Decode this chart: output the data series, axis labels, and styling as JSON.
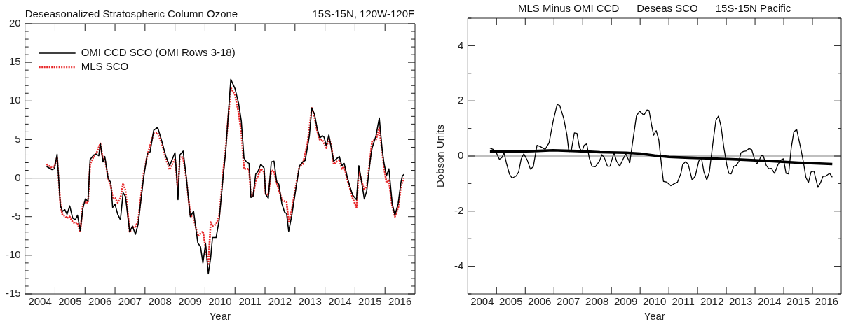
{
  "chart_data": [
    {
      "type": "line",
      "title": "Deseasonalized Stratospheric Column Ozone",
      "subtitle": "15S-15N, 120W-120E",
      "xlabel": "Year",
      "xlim": [
        2004,
        2017
      ],
      "xticks": [
        {
          "value": 2004.5,
          "label": "2004"
        },
        {
          "value": 2005,
          "label": null
        },
        {
          "value": 2005.5,
          "label": "2005"
        },
        {
          "value": 2006,
          "label": null
        },
        {
          "value": 2006.5,
          "label": "2006"
        },
        {
          "value": 2007,
          "label": null
        },
        {
          "value": 2007.5,
          "label": "2007"
        },
        {
          "value": 2008,
          "label": null
        },
        {
          "value": 2008.5,
          "label": "2008"
        },
        {
          "value": 2009,
          "label": null
        },
        {
          "value": 2009.5,
          "label": "2009"
        },
        {
          "value": 2010,
          "label": null
        },
        {
          "value": 2010.5,
          "label": "2010"
        },
        {
          "value": 2011,
          "label": null
        },
        {
          "value": 2011.5,
          "label": "2011"
        },
        {
          "value": 2012,
          "label": null
        },
        {
          "value": 2012.5,
          "label": "2012"
        },
        {
          "value": 2013,
          "label": null
        },
        {
          "value": 2013.5,
          "label": "2013"
        },
        {
          "value": 2014,
          "label": null
        },
        {
          "value": 2014.5,
          "label": "2014"
        },
        {
          "value": 2015,
          "label": null
        },
        {
          "value": 2015.5,
          "label": "2015"
        },
        {
          "value": 2016,
          "label": null
        },
        {
          "value": 2016.5,
          "label": "2016"
        }
      ],
      "ylim": [
        -15,
        20
      ],
      "yticks": [
        -15,
        {
          "value": -14,
          "label": null
        },
        {
          "value": -13,
          "label": null
        },
        {
          "value": -12,
          "label": null
        },
        {
          "value": -11,
          "label": null
        },
        -10,
        {
          "value": -9,
          "label": null
        },
        {
          "value": -8,
          "label": null
        },
        {
          "value": -7,
          "label": null
        },
        {
          "value": -6,
          "label": null
        },
        -5,
        {
          "value": -4,
          "label": null
        },
        {
          "value": -3,
          "label": null
        },
        {
          "value": -2,
          "label": null
        },
        {
          "value": -1,
          "label": null
        },
        0,
        {
          "value": 1,
          "label": null
        },
        {
          "value": 2,
          "label": null
        },
        {
          "value": 3,
          "label": null
        },
        {
          "value": 4,
          "label": null
        },
        5,
        {
          "value": 6,
          "label": null
        },
        {
          "value": 7,
          "label": null
        },
        {
          "value": 8,
          "label": null
        },
        {
          "value": 9,
          "label": null
        },
        10,
        {
          "value": 11,
          "label": null
        },
        {
          "value": 12,
          "label": null
        },
        {
          "value": 13,
          "label": null
        },
        {
          "value": 14,
          "label": null
        },
        15,
        {
          "value": 16,
          "label": null
        },
        {
          "value": 17,
          "label": null
        },
        {
          "value": 18,
          "label": null
        },
        {
          "value": 19,
          "label": null
        },
        20
      ],
      "grid": false,
      "legend": "top left",
      "marker": "none",
      "ref_lines": [
        {
          "axis": "y",
          "value": 0,
          "color": "#808080"
        }
      ],
      "series": [
        {
          "name": "OMI CCD SCO (OMI Rows 3-18)",
          "color": "#000000",
          "line_style": "solid",
          "x": [
            2004.72,
            2004.9,
            2004.98,
            2005.07,
            2005.18,
            2005.25,
            2005.33,
            2005.4,
            2005.49,
            2005.59,
            2005.68,
            2005.75,
            2005.84,
            2005.93,
            2006.01,
            2006.1,
            2006.17,
            2006.29,
            2006.38,
            2006.46,
            2006.51,
            2006.6,
            2006.66,
            2006.77,
            2006.86,
            2006.92,
            2007.0,
            2007.09,
            2007.18,
            2007.27,
            2007.35,
            2007.49,
            2007.58,
            2007.68,
            2007.77,
            2007.95,
            2008.08,
            2008.17,
            2008.29,
            2008.42,
            2008.56,
            2008.69,
            2008.82,
            2009.0,
            2009.05,
            2009.1,
            2009.16,
            2009.27,
            2009.38,
            2009.51,
            2009.62,
            2009.76,
            2009.85,
            2009.93,
            2010.02,
            2010.11,
            2010.19,
            2010.25,
            2010.37,
            2010.47,
            2010.6,
            2010.69,
            2010.86,
            2011.0,
            2011.12,
            2011.21,
            2011.3,
            2011.38,
            2011.47,
            2011.53,
            2011.6,
            2011.69,
            2011.77,
            2011.86,
            2011.97,
            2012.02,
            2012.11,
            2012.21,
            2012.3,
            2012.39,
            2012.46,
            2012.56,
            2012.65,
            2012.72,
            2012.79,
            2012.89,
            2013.04,
            2013.15,
            2013.26,
            2013.34,
            2013.42,
            2013.48,
            2013.56,
            2013.65,
            2013.74,
            2013.83,
            2013.91,
            2013.97,
            2014.04,
            2014.13,
            2014.21,
            2014.29,
            2014.38,
            2014.48,
            2014.56,
            2014.64,
            2014.75,
            2014.83,
            2014.92,
            2015.05,
            2015.13,
            2015.22,
            2015.31,
            2015.39,
            2015.52,
            2015.57,
            2015.7,
            2015.81,
            2015.9,
            2015.96,
            2016.05,
            2016.13,
            2016.24,
            2016.33,
            2016.44,
            2016.53,
            2016.58,
            2016.64
          ],
          "values": [
            1.5,
            1.1,
            1.2,
            3.1,
            -3.6,
            -4.3,
            -4.1,
            -4.7,
            -3.6,
            -5.2,
            -5.4,
            -4.8,
            -6.8,
            -3.9,
            -2.7,
            -3.0,
            2.4,
            3.0,
            3.1,
            2.9,
            4.5,
            2.1,
            2.8,
            0,
            -0.6,
            -3.8,
            -3.4,
            -4.7,
            -5.4,
            -1.9,
            -2.4,
            -7.0,
            -6.2,
            -7.3,
            -6.0,
            0,
            3.2,
            3.4,
            6.2,
            6.6,
            4.8,
            2.9,
            1.6,
            3.3,
            0.5,
            -2.8,
            3.0,
            3.5,
            0,
            -5.0,
            -4.3,
            -8.4,
            -8.9,
            -11.0,
            -8.5,
            -12.4,
            -10.3,
            -7.7,
            -7.7,
            -5.5,
            0,
            3.5,
            12.8,
            11.6,
            9.7,
            7.4,
            2.6,
            2.1,
            1.9,
            -2.5,
            -2.4,
            0.5,
            0.9,
            1.8,
            1.3,
            -2.1,
            -2.6,
            2.1,
            2.2,
            -0.5,
            -0.8,
            -3.3,
            -4.4,
            -4.6,
            -6.9,
            -4.9,
            -1.1,
            1.6,
            2.1,
            2.3,
            4.1,
            5.5,
            9.1,
            8.3,
            6.4,
            5.2,
            5.5,
            5.3,
            4.2,
            5.6,
            3.9,
            2.2,
            2.5,
            2.8,
            1.6,
            1.9,
            0,
            -1.1,
            -2.2,
            -2.8,
            1.6,
            -0.5,
            -2.7,
            -1.7,
            2.7,
            3.9,
            5.5,
            7.8,
            3.9,
            2.1,
            0.3,
            1.2,
            -3.3,
            -4.8,
            -3.3,
            -0.6,
            0.3,
            0.5
          ]
        },
        {
          "name": "MLS SCO",
          "color": "#e8282a",
          "line_style": "dotted",
          "x": [
            2004.72,
            2004.9,
            2004.98,
            2005.07,
            2005.18,
            2005.25,
            2005.33,
            2005.4,
            2005.49,
            2005.59,
            2005.68,
            2005.75,
            2005.84,
            2005.93,
            2006.01,
            2006.1,
            2006.17,
            2006.29,
            2006.38,
            2006.51,
            2006.6,
            2006.66,
            2006.77,
            2006.86,
            2006.92,
            2007.0,
            2007.09,
            2007.18,
            2007.27,
            2007.35,
            2007.49,
            2007.58,
            2007.68,
            2007.77,
            2007.95,
            2008.08,
            2008.29,
            2008.42,
            2008.56,
            2008.69,
            2008.82,
            2009.0,
            2009.05,
            2009.1,
            2009.16,
            2009.27,
            2009.38,
            2009.51,
            2009.62,
            2009.76,
            2009.85,
            2009.93,
            2010.02,
            2010.11,
            2010.19,
            2010.25,
            2010.37,
            2010.47,
            2010.6,
            2010.69,
            2010.86,
            2011.0,
            2011.12,
            2011.21,
            2011.3,
            2011.47,
            2011.53,
            2011.6,
            2011.69,
            2011.77,
            2011.86,
            2011.97,
            2012.02,
            2012.11,
            2012.21,
            2012.3,
            2012.39,
            2012.56,
            2012.65,
            2012.72,
            2012.79,
            2012.89,
            2013.04,
            2013.15,
            2013.26,
            2013.42,
            2013.56,
            2013.65,
            2013.74,
            2013.83,
            2013.91,
            2014.04,
            2014.13,
            2014.21,
            2014.29,
            2014.38,
            2014.48,
            2014.56,
            2014.64,
            2014.75,
            2014.83,
            2014.92,
            2015.05,
            2015.13,
            2015.22,
            2015.31,
            2015.39,
            2015.52,
            2015.57,
            2015.7,
            2015.81,
            2015.9,
            2015.96,
            2016.05,
            2016.13,
            2016.24,
            2016.33,
            2016.44,
            2016.53,
            2016.62
          ],
          "values": [
            1.8,
            1.3,
            1.5,
            2.7,
            -3.4,
            -4.8,
            -4.9,
            -5.2,
            -5.0,
            -5.7,
            -5.9,
            -5.8,
            -7.0,
            -3.4,
            -3.1,
            -3.2,
            1.8,
            2.8,
            3.2,
            4.5,
            2.4,
            2.6,
            0,
            -1.0,
            -2.5,
            -2.6,
            -3.2,
            -2.6,
            -0.7,
            -1.6,
            -7.0,
            -6.4,
            -6.3,
            -5.6,
            0.5,
            3.0,
            5.8,
            5.9,
            4.5,
            2.5,
            1.1,
            2.5,
            0.6,
            -1.9,
            2.8,
            2.7,
            -0.2,
            -4.8,
            -5.2,
            -7.5,
            -7.2,
            -6.9,
            -9.0,
            -11.3,
            -5.7,
            -6.2,
            -6.0,
            -5.0,
            0.5,
            4.0,
            11.7,
            10.8,
            8.5,
            6.0,
            1.2,
            1.2,
            -2.3,
            -2.4,
            -0.3,
            0.3,
            1.2,
            0.8,
            -2.0,
            -2.2,
            1.0,
            0.9,
            -0.6,
            -2.8,
            -3.0,
            -3.1,
            -5.8,
            -4.2,
            -0.8,
            1.6,
            1.8,
            4.5,
            9.2,
            7.9,
            6.1,
            4.9,
            5.0,
            3.9,
            5.2,
            4.2,
            1.8,
            2.1,
            2.4,
            1.2,
            1.5,
            -0.3,
            -1.3,
            -2.6,
            -3.8,
            1.0,
            -0.4,
            -1.6,
            -1.0,
            3.0,
            4.8,
            5.0,
            6.5,
            3.5,
            1.6,
            -0.6,
            -0.3,
            -3.6,
            -5.0,
            -3.8,
            -1.2,
            0.0
          ]
        }
      ]
    },
    {
      "type": "line",
      "title": "MLS Minus OMI CCD      Deseas SCO      15S-15N Pacific",
      "xlabel": "Year",
      "ylabel": "Dobson Units",
      "xlim": [
        2004,
        2017
      ],
      "xticks": [
        {
          "value": 2004.5,
          "label": "2004"
        },
        {
          "value": 2005,
          "label": null
        },
        {
          "value": 2005.5,
          "label": "2005"
        },
        {
          "value": 2006,
          "label": null
        },
        {
          "value": 2006.5,
          "label": "2006"
        },
        {
          "value": 2007,
          "label": null
        },
        {
          "value": 2007.5,
          "label": "2007"
        },
        {
          "value": 2008,
          "label": null
        },
        {
          "value": 2008.5,
          "label": "2008"
        },
        {
          "value": 2009,
          "label": null
        },
        {
          "value": 2009.5,
          "label": "2009"
        },
        {
          "value": 2010,
          "label": null
        },
        {
          "value": 2010.5,
          "label": "2010"
        },
        {
          "value": 2011,
          "label": null
        },
        {
          "value": 2011.5,
          "label": "2011"
        },
        {
          "value": 2012,
          "label": null
        },
        {
          "value": 2012.5,
          "label": "2012"
        },
        {
          "value": 2013,
          "label": null
        },
        {
          "value": 2013.5,
          "label": "2013"
        },
        {
          "value": 2014,
          "label": null
        },
        {
          "value": 2014.5,
          "label": "2014"
        },
        {
          "value": 2015,
          "label": null
        },
        {
          "value": 2015.5,
          "label": "2015"
        },
        {
          "value": 2016,
          "label": null
        },
        {
          "value": 2016.5,
          "label": "2016"
        }
      ],
      "ylim": [
        -5,
        5
      ],
      "yticks": [
        {
          "value": -5,
          "label": null
        },
        -4,
        {
          "value": -3,
          "label": null
        },
        -2,
        {
          "value": -1,
          "label": null
        },
        0,
        {
          "value": 1,
          "label": null
        },
        2,
        {
          "value": 3,
          "label": null
        },
        4,
        {
          "value": 5,
          "label": null
        }
      ],
      "grid": false,
      "marker": "none",
      "ref_lines": [
        {
          "axis": "y",
          "value": 0,
          "color": "#808080"
        }
      ],
      "series": [
        {
          "color": "#000000",
          "line_style": "solid",
          "x": [
            2004.77,
            2004.89,
            2005.0,
            2005.1,
            2005.19,
            2005.26,
            2005.34,
            2005.45,
            2005.54,
            2005.68,
            2005.77,
            2005.86,
            2005.95,
            2006.07,
            2006.18,
            2006.28,
            2006.41,
            2006.53,
            2006.69,
            2006.83,
            2006.97,
            2007.11,
            2007.2,
            2007.34,
            2007.45,
            2007.52,
            2007.61,
            2007.71,
            2007.8,
            2007.89,
            2007.98,
            2008.05,
            2008.14,
            2008.23,
            2008.32,
            2008.44,
            2008.58,
            2008.67,
            2008.76,
            2008.86,
            2008.95,
            2009.09,
            2009.18,
            2009.29,
            2009.41,
            2009.5,
            2009.64,
            2009.73,
            2009.87,
            2009.98,
            2010.13,
            2010.24,
            2010.31,
            2010.41,
            2010.47,
            2010.56,
            2010.65,
            2010.75,
            2010.81,
            2010.93,
            2011.07,
            2011.16,
            2011.3,
            2011.42,
            2011.48,
            2011.58,
            2011.67,
            2011.81,
            2011.92,
            2012.04,
            2012.13,
            2012.22,
            2012.32,
            2012.41,
            2012.54,
            2012.64,
            2012.73,
            2012.82,
            2012.91,
            2013.02,
            2013.09,
            2013.17,
            2013.26,
            2013.35,
            2013.44,
            2013.51,
            2013.6,
            2013.7,
            2013.79,
            2013.88,
            2013.98,
            2014.06,
            2014.16,
            2014.22,
            2014.29,
            2014.39,
            2014.48,
            2014.57,
            2014.68,
            2014.8,
            2014.89,
            2014.99,
            2015.08,
            2015.17,
            2015.26,
            2015.35,
            2015.45,
            2015.59,
            2015.68,
            2015.77,
            2015.86,
            2015.95,
            2016.05,
            2016.19,
            2016.28,
            2016.37,
            2016.46,
            2016.6,
            2016.69
          ],
          "values": [
            0.29,
            0.24,
            0.1,
            -0.12,
            -0.05,
            0.12,
            -0.24,
            -0.66,
            -0.8,
            -0.73,
            -0.58,
            -0.1,
            0.08,
            -0.15,
            -0.48,
            -0.39,
            0.39,
            0.34,
            0.24,
            0.48,
            1.26,
            1.87,
            1.84,
            1.36,
            0.77,
            0.15,
            0.24,
            0.84,
            0.82,
            0.29,
            0.17,
            0.39,
            0.44,
            -0.08,
            -0.37,
            -0.39,
            -0.19,
            0.05,
            -0.08,
            -0.37,
            -0.37,
            0.12,
            -0.19,
            -0.37,
            -0.1,
            0.08,
            -0.24,
            0.44,
            1.45,
            1.63,
            1.48,
            1.67,
            1.65,
            1.06,
            0.76,
            0.92,
            0.58,
            -0.39,
            -0.92,
            -0.95,
            -1.08,
            -1.02,
            -0.95,
            -0.63,
            -0.31,
            -0.21,
            -0.29,
            -0.87,
            -0.73,
            -0.19,
            -0.05,
            -0.58,
            -0.87,
            -0.58,
            0.53,
            1.31,
            1.45,
            1.06,
            0.34,
            -0.34,
            -0.63,
            -0.65,
            -0.37,
            -0.34,
            -0.19,
            0.12,
            0.17,
            0.19,
            0.27,
            0.24,
            -0.1,
            -0.29,
            -0.12,
            0.02,
            0.0,
            -0.34,
            -0.46,
            -0.45,
            -0.63,
            -0.31,
            -0.15,
            -0.1,
            -0.63,
            -0.65,
            0.29,
            0.87,
            0.97,
            0.29,
            -0.19,
            -0.77,
            -0.97,
            -0.58,
            -0.55,
            -1.14,
            -0.97,
            -0.73,
            -0.73,
            -0.63,
            -0.77
          ]
        },
        {
          "color": "#000000",
          "line_style": "solid",
          "x": [
            2004.77,
            2005.5,
            2006.3,
            2006.97,
            2007.8,
            2008.6,
            2009.5,
            2010.0,
            2010.5,
            2011.0,
            2011.7,
            2012.5,
            2013.5,
            2014.5,
            2015.5,
            2016.69
          ],
          "values": [
            0.17,
            0.16,
            0.18,
            0.21,
            0.18,
            0.14,
            0.12,
            0.09,
            0.02,
            -0.03,
            -0.06,
            -0.09,
            -0.13,
            -0.18,
            -0.24,
            -0.29
          ]
        }
      ]
    }
  ]
}
